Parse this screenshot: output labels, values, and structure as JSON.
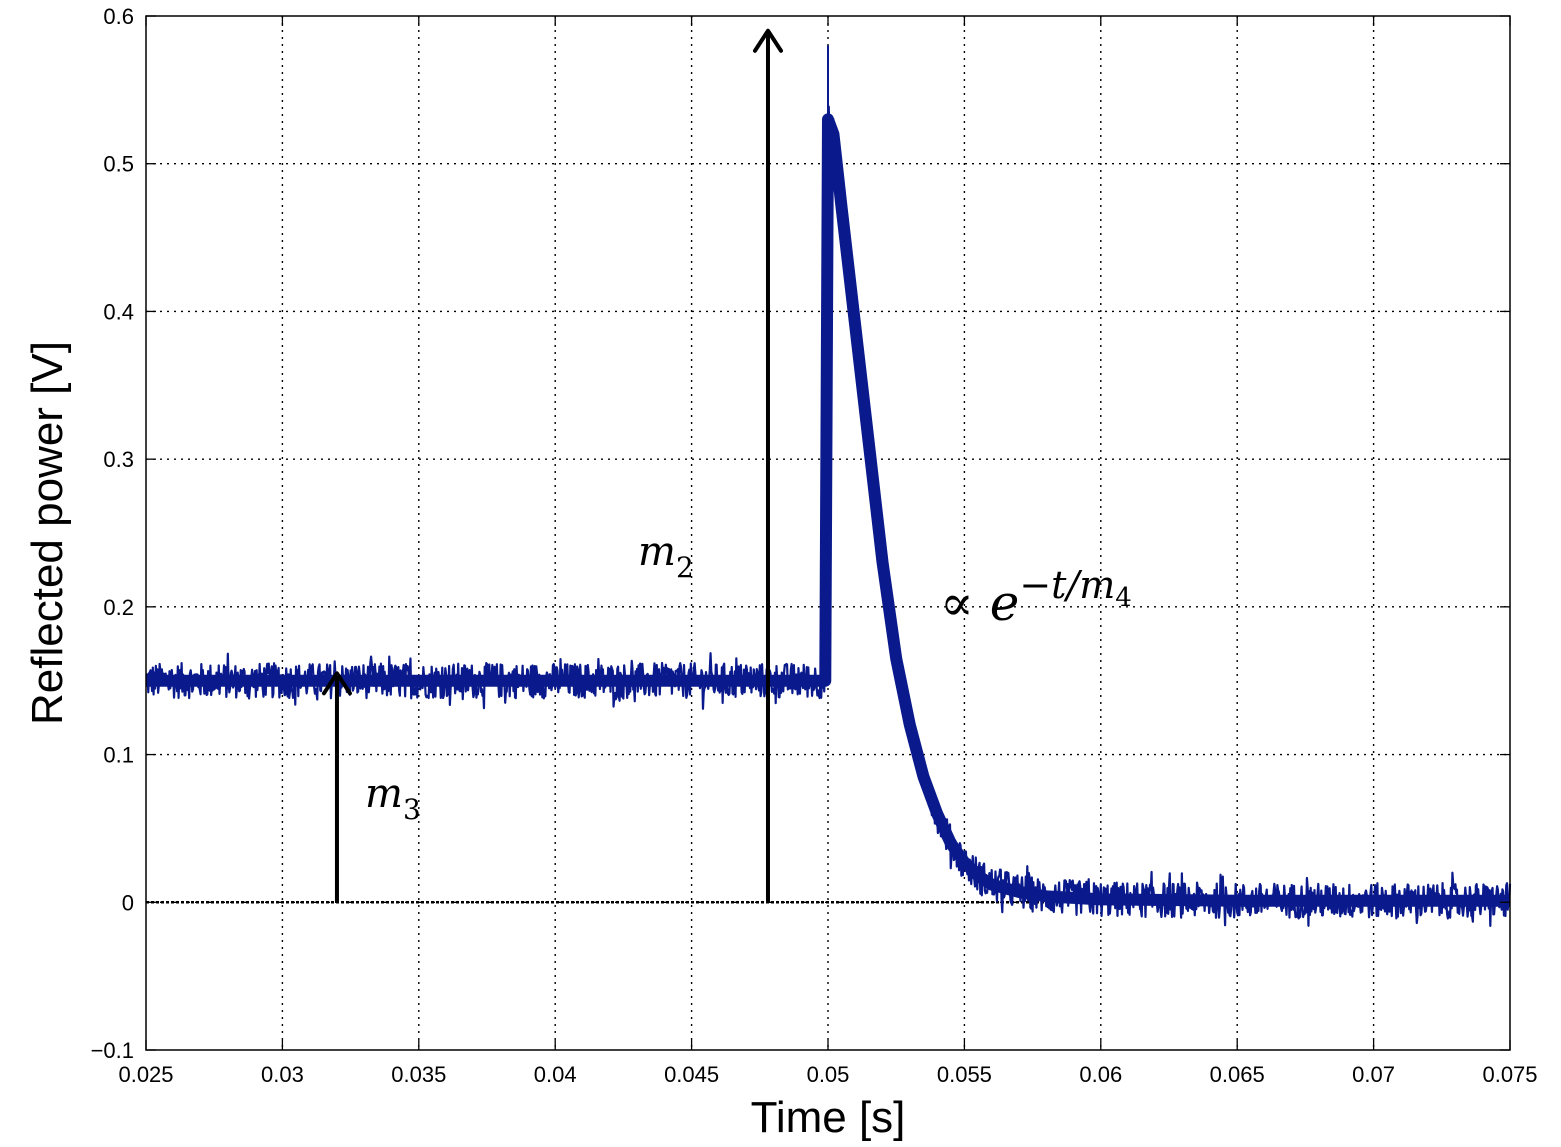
{
  "chart_data": {
    "type": "line",
    "title": "",
    "xlabel": "Time [s]",
    "ylabel": "Reflected power [V]",
    "xlim": [
      0.025,
      0.075
    ],
    "ylim": [
      -0.1,
      0.6
    ],
    "grid": true,
    "x_ticks": [
      0.025,
      0.03,
      0.035,
      0.04,
      0.045,
      0.05,
      0.055,
      0.06,
      0.065,
      0.07,
      0.075
    ],
    "x_tick_labels": [
      "0.025",
      "0.03",
      "0.035",
      "0.04",
      "0.045",
      "0.05",
      "0.055",
      "0.06",
      "0.065",
      "0.07",
      "0.075"
    ],
    "y_ticks": [
      -0.1,
      0,
      0.1,
      0.2,
      0.3,
      0.4,
      0.5,
      0.6
    ],
    "y_tick_labels": [
      "−0.1",
      "0",
      "0.1",
      "0.2",
      "0.3",
      "0.4",
      "0.5",
      "0.6"
    ],
    "series": [
      {
        "color": "#0a1a8c",
        "x": [
          0.025,
          0.0499,
          0.05,
          0.0502,
          0.0505,
          0.051,
          0.0515,
          0.052,
          0.0525,
          0.053,
          0.0535,
          0.054,
          0.0545,
          0.055,
          0.0555,
          0.056,
          0.057,
          0.058,
          0.06,
          0.065,
          0.07,
          0.075
        ],
        "values": [
          0.15,
          0.15,
          0.53,
          0.52,
          0.47,
          0.39,
          0.31,
          0.23,
          0.165,
          0.12,
          0.085,
          0.06,
          0.04,
          0.027,
          0.018,
          0.012,
          0.007,
          0.004,
          0.002,
          0.001,
          0.001,
          0.001
        ]
      }
    ],
    "noise_amplitude": 0.012,
    "spike": {
      "x": 0.05,
      "y": 0.58
    },
    "baseline": {
      "y": 0
    },
    "annotations": [
      {
        "kind": "arrow",
        "x": 0.032,
        "y_from": 0,
        "y_to": 0.155,
        "label": "m",
        "subscript": "3"
      },
      {
        "kind": "arrow",
        "x": 0.0478,
        "y_from": 0,
        "y_to": 0.59,
        "label": "m",
        "subscript": "2"
      },
      {
        "kind": "text",
        "prefix": "∝",
        "base": "e",
        "exponent": "−t/m",
        "exponent_subscript": "4"
      }
    ],
    "line_color": "#0a1a8c"
  }
}
